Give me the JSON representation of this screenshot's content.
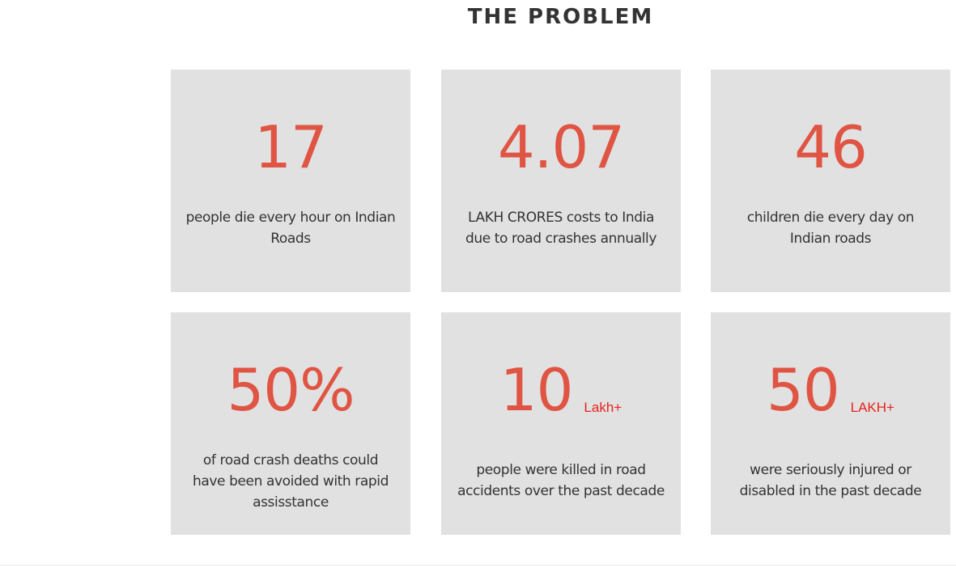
{
  "section": {
    "title": "THE PROBLEM"
  },
  "cards": [
    {
      "number": "17",
      "suffix": "",
      "description": "people die every hour on Indian Roads"
    },
    {
      "number": "4.07",
      "suffix": "",
      "description": "LAKH CRORES costs to India due to road crashes annually"
    },
    {
      "number": "46",
      "suffix": "",
      "description": "children die every day on Indian roads"
    },
    {
      "number": "50%",
      "suffix": "",
      "description": "of road crash deaths could have been avoided with rapid assisstance"
    },
    {
      "number": "10",
      "suffix": "Lakh+",
      "description": "people were killed in road accidents over the past decade"
    },
    {
      "number": "50",
      "suffix": "LAKH+",
      "description": "were seriously injured or disabled in the past decade"
    }
  ],
  "colors": {
    "card_background": "#e1e1e1",
    "number": "#e05443",
    "suffix": "#e8231d",
    "text": "#333333"
  }
}
